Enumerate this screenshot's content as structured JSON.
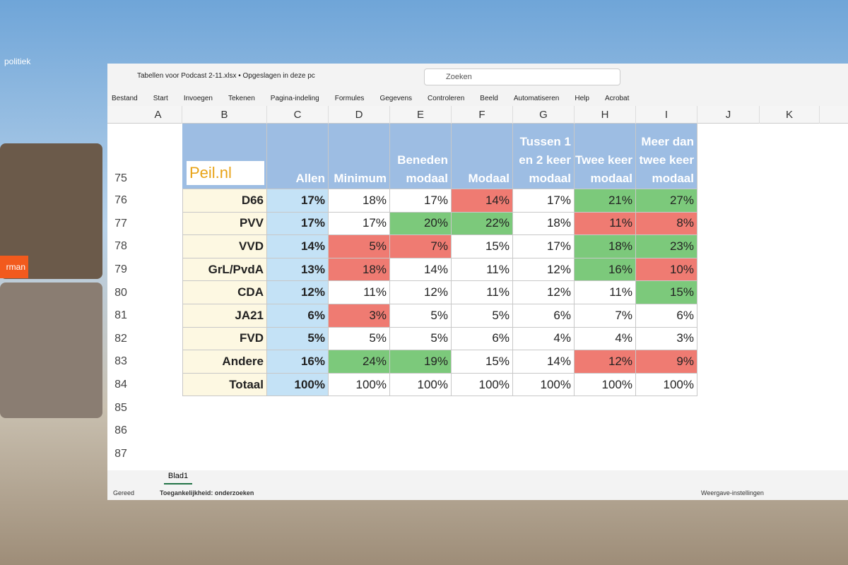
{
  "window": {
    "title": "Tabellen voor Podcast 2-11.xlsx • Opgeslagen in deze pc",
    "search": "Zoeken",
    "menu": [
      "Bestand",
      "Start",
      "Invoegen",
      "Tekenen",
      "Pagina-indeling",
      "Formules",
      "Gegevens",
      "Controleren",
      "Beeld",
      "Automatiseren",
      "Help",
      "Acrobat"
    ]
  },
  "sheet": {
    "columns": [
      "A",
      "B",
      "C",
      "D",
      "E",
      "F",
      "G",
      "H",
      "I",
      "J",
      "K"
    ],
    "row_numbers": [
      75,
      76,
      77,
      78,
      79,
      80,
      81,
      82,
      83,
      84,
      85,
      86,
      87
    ],
    "logo": "Peil.nl",
    "header": [
      "Allen",
      "Minimum",
      "Beneden modaal",
      "Modaal",
      "Tussen 1 en 2 keer modaal",
      "Twee keer modaal",
      "Meer dan twee keer modaal"
    ],
    "rows": [
      {
        "party": "D66",
        "values": [
          "17%",
          "18%",
          "17%",
          "14%",
          "17%",
          "21%",
          "27%"
        ],
        "highlight": [
          "none",
          "none",
          "red",
          "none",
          "green",
          "green"
        ]
      },
      {
        "party": "PVV",
        "values": [
          "17%",
          "17%",
          "20%",
          "22%",
          "18%",
          "11%",
          "8%"
        ],
        "highlight": [
          "none",
          "green",
          "green",
          "none",
          "red",
          "red"
        ]
      },
      {
        "party": "VVD",
        "values": [
          "14%",
          "5%",
          "7%",
          "15%",
          "17%",
          "18%",
          "23%"
        ],
        "highlight": [
          "red",
          "red",
          "none",
          "none",
          "green",
          "green"
        ]
      },
      {
        "party": "GrL/PvdA",
        "values": [
          "13%",
          "18%",
          "14%",
          "11%",
          "12%",
          "16%",
          "10%"
        ],
        "highlight": [
          "red",
          "none",
          "none",
          "none",
          "green",
          "red"
        ]
      },
      {
        "party": "CDA",
        "values": [
          "12%",
          "11%",
          "12%",
          "11%",
          "12%",
          "11%",
          "15%"
        ],
        "highlight": [
          "none",
          "none",
          "none",
          "none",
          "none",
          "green"
        ]
      },
      {
        "party": "JA21",
        "values": [
          "6%",
          "3%",
          "5%",
          "5%",
          "6%",
          "7%",
          "6%"
        ],
        "highlight": [
          "red",
          "none",
          "none",
          "none",
          "none",
          "none"
        ]
      },
      {
        "party": "FVD",
        "values": [
          "5%",
          "5%",
          "5%",
          "6%",
          "4%",
          "4%",
          "3%"
        ],
        "highlight": [
          "none",
          "none",
          "none",
          "none",
          "none",
          "none"
        ]
      },
      {
        "party": "Andere",
        "values": [
          "16%",
          "24%",
          "19%",
          "15%",
          "14%",
          "12%",
          "9%"
        ],
        "highlight": [
          "green",
          "green",
          "none",
          "none",
          "red",
          "red"
        ]
      },
      {
        "party": "Totaal",
        "values": [
          "100%",
          "100%",
          "100%",
          "100%",
          "100%",
          "100%",
          "100%"
        ],
        "highlight": [
          "none",
          "none",
          "none",
          "none",
          "none",
          "none"
        ]
      }
    ],
    "tab": "Blad1"
  },
  "status": {
    "ready": "Gereed",
    "accessibility": "Toegankelijkheid: onderzoeken",
    "view": "Weergave-instellingen"
  },
  "overlay": {
    "brand": "politiek",
    "name_tag": "rman"
  }
}
